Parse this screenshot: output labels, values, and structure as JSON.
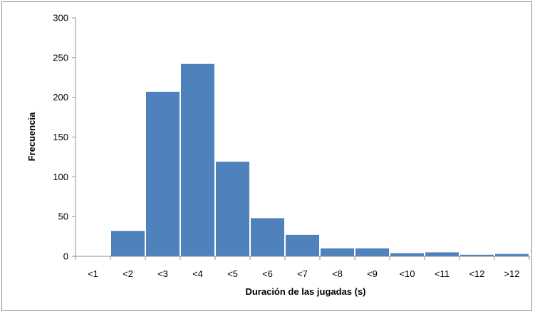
{
  "chart_data": {
    "type": "bar",
    "title": "",
    "xlabel": "Duración de las jugadas (s)",
    "ylabel": "Frecuencia",
    "categories": [
      "<1",
      "<2",
      "<3",
      "<4",
      "<5",
      "<6",
      "<7",
      "<8",
      "<9",
      "<10",
      "<11",
      "<12",
      ">12"
    ],
    "values": [
      0,
      32,
      207,
      242,
      119,
      48,
      27,
      10,
      10,
      4,
      5,
      2,
      3
    ],
    "ylim": [
      0,
      300
    ],
    "yticks": [
      0,
      50,
      100,
      150,
      200,
      250,
      300
    ],
    "grid": false,
    "legend": "none",
    "bar_color": "#4f81bd"
  }
}
